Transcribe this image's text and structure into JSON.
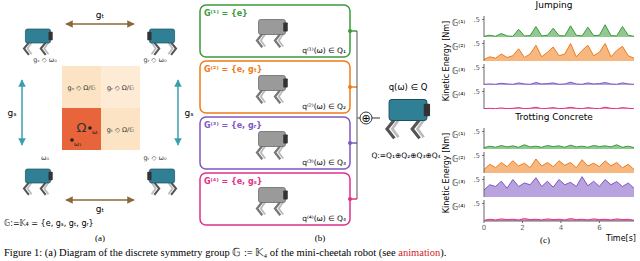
{
  "panel_a": {
    "label": "(a)",
    "group": "𝔾:=𝕂₄ = {e, gₛ, gₜ, gᵣ}",
    "arrows": {
      "top": "gₜ",
      "bottom": "gₜ",
      "left": "gₛ",
      "right": "gₛ"
    },
    "robots": [
      "gₛ ◇ ω₀",
      "gᵣ ◇ ω₀",
      "ω₀",
      "gₜ ◇ ω₀"
    ],
    "regions": [
      "gₛ ◇ Ω/𝔾",
      "gᵣ ◇ Ω/𝔾",
      "Ω",
      "gₜ ◇ Ω/𝔾"
    ],
    "points": [
      "ω₁",
      "ωᵢ"
    ]
  },
  "panel_b": {
    "label": "(b)",
    "subspaces": [
      {
        "group": "G⁽¹⁾ = {e}",
        "component": "q⁽¹⁾(ω) ∈ Q₁",
        "color": "#3b9b3b"
      },
      {
        "group": "G⁽²⁾ = {e, gₜ}",
        "component": "q⁽²⁾(ω) ∈ Q₂",
        "color": "#f07b1a"
      },
      {
        "group": "G⁽³⁾ = {e, gᵣ}",
        "component": "q⁽³⁾(ω) ∈ Q₃",
        "color": "#7e57c2"
      },
      {
        "group": "G⁽⁴⁾ = {e, gₛ}",
        "component": "q⁽⁴⁾(ω) ∈ Q₄",
        "color": "#e0308a"
      }
    ],
    "sum": "⊕",
    "total": "q(ω) ∈ Q",
    "decomposition": "Q:=Q₁⊕Q₂⊕Q₃⊕Q₄"
  },
  "panel_c": {
    "label": "(c)"
  },
  "chart_data": [
    {
      "type": "area",
      "title": "Jumping",
      "ylabel": "Kinetic Energy [Nm]",
      "tick_labels": "y",
      "x": [
        0,
        0.3,
        0.6,
        0.9,
        1.2,
        1.5,
        1.8,
        2.1,
        2.4,
        2.7,
        3,
        3.3,
        3.6,
        3.9,
        4.2,
        4.5,
        4.8,
        5.1,
        5.4,
        5.7,
        6,
        6.3,
        6.6,
        6.9,
        7.2,
        7.5,
        7.8
      ],
      "xlim": [
        0,
        7.8
      ],
      "ylim": [
        0,
        0.6
      ],
      "yticks": [
        {
          "value": 0.5,
          "label": ".5"
        }
      ],
      "series": [
        {
          "name": "𝔾⁽¹⁾",
          "color": "#3b9b3b",
          "values": [
            0.02,
            0.05,
            0.02,
            0.1,
            0.03,
            0.02,
            0.22,
            0.03,
            0.04,
            0.3,
            0.03,
            0.05,
            0.25,
            0.04,
            0.03,
            0.32,
            0.05,
            0.03,
            0.28,
            0.04,
            0.05,
            0.35,
            0.04,
            0.03,
            0.3,
            0.05,
            0.02
          ]
        },
        {
          "name": "𝔾⁽²⁾",
          "color": "#f07b1a",
          "values": [
            0.05,
            0.12,
            0.08,
            0.2,
            0.1,
            0.15,
            0.35,
            0.1,
            0.2,
            0.45,
            0.12,
            0.25,
            0.4,
            0.15,
            0.2,
            0.5,
            0.12,
            0.3,
            0.45,
            0.15,
            0.25,
            0.5,
            0.12,
            0.3,
            0.42,
            0.15,
            0.08
          ]
        },
        {
          "name": "𝔾⁽³⁾",
          "color": "#7e57c2",
          "values": [
            0.02,
            0.03,
            0.02,
            0.05,
            0.03,
            0.02,
            0.06,
            0.03,
            0.02,
            0.07,
            0.03,
            0.04,
            0.06,
            0.02,
            0.03,
            0.08,
            0.03,
            0.02,
            0.06,
            0.03,
            0.04,
            0.07,
            0.03,
            0.02,
            0.06,
            0.03,
            0.02
          ]
        },
        {
          "name": "𝔾⁽⁴⁾",
          "color": "#e0308a",
          "values": [
            0.01,
            0.02,
            0.01,
            0.03,
            0.01,
            0.02,
            0.04,
            0.01,
            0.02,
            0.05,
            0.01,
            0.02,
            0.04,
            0.01,
            0.02,
            0.05,
            0.02,
            0.01,
            0.04,
            0.02,
            0.01,
            0.05,
            0.02,
            0.01,
            0.04,
            0.02,
            0.01
          ]
        }
      ]
    },
    {
      "type": "area",
      "title": "Trotting Concrete",
      "ylabel": "Kinetic Energy [Nm]",
      "xlabel": "Time[s]",
      "x": [
        0,
        0.3,
        0.6,
        0.9,
        1.2,
        1.5,
        1.8,
        2.1,
        2.4,
        2.7,
        3,
        3.3,
        3.6,
        3.9,
        4.2,
        4.5,
        4.8,
        5.1,
        5.4,
        5.7,
        6,
        6.3,
        6.6,
        6.9,
        7.2,
        7.5,
        7.8
      ],
      "xlim": [
        0,
        7.8
      ],
      "xticks": [
        0,
        2,
        4,
        6
      ],
      "ylim": [
        0,
        0.6
      ],
      "yticks": [
        {
          "value": 0.5,
          "label": ".5"
        }
      ],
      "series": [
        {
          "name": "𝔾⁽¹⁾",
          "color": "#3b9b3b",
          "values": [
            0.04,
            0.08,
            0.05,
            0.1,
            0.06,
            0.09,
            0.05,
            0.12,
            0.06,
            0.08,
            0.05,
            0.1,
            0.07,
            0.09,
            0.05,
            0.11,
            0.06,
            0.08,
            0.05,
            0.1,
            0.07,
            0.09,
            0.06,
            0.12,
            0.05,
            0.08,
            0.04
          ]
        },
        {
          "name": "𝔾⁽²⁾",
          "color": "#f07b1a",
          "values": [
            0.1,
            0.25,
            0.15,
            0.3,
            0.18,
            0.35,
            0.2,
            0.28,
            0.15,
            0.4,
            0.2,
            0.3,
            0.18,
            0.35,
            0.22,
            0.3,
            0.15,
            0.38,
            0.2,
            0.28,
            0.18,
            0.35,
            0.2,
            0.3,
            0.15,
            0.25,
            0.1
          ]
        },
        {
          "name": "𝔾⁽³⁾",
          "color": "#7e57c2",
          "values": [
            0.2,
            0.35,
            0.3,
            0.45,
            0.25,
            0.5,
            0.3,
            0.4,
            0.35,
            0.55,
            0.3,
            0.45,
            0.28,
            0.5,
            0.35,
            0.42,
            0.3,
            0.58,
            0.32,
            0.45,
            0.3,
            0.5,
            0.35,
            0.44,
            0.3,
            0.4,
            0.25
          ]
        },
        {
          "name": "𝔾⁽⁴⁾",
          "color": "#e0308a",
          "values": [
            0.02,
            0.05,
            0.03,
            0.06,
            0.04,
            0.05,
            0.03,
            0.07,
            0.04,
            0.05,
            0.03,
            0.06,
            0.04,
            0.05,
            0.03,
            0.07,
            0.04,
            0.05,
            0.03,
            0.06,
            0.04,
            0.05,
            0.03,
            0.06,
            0.04,
            0.05,
            0.02
          ]
        }
      ]
    }
  ],
  "caption": {
    "text": "Figure 1: (a) Diagram of the discrete symmetry group 𝔾 := 𝕂₄ of the mini-cheetah robot (see ",
    "link": "animation",
    "end": ")."
  }
}
